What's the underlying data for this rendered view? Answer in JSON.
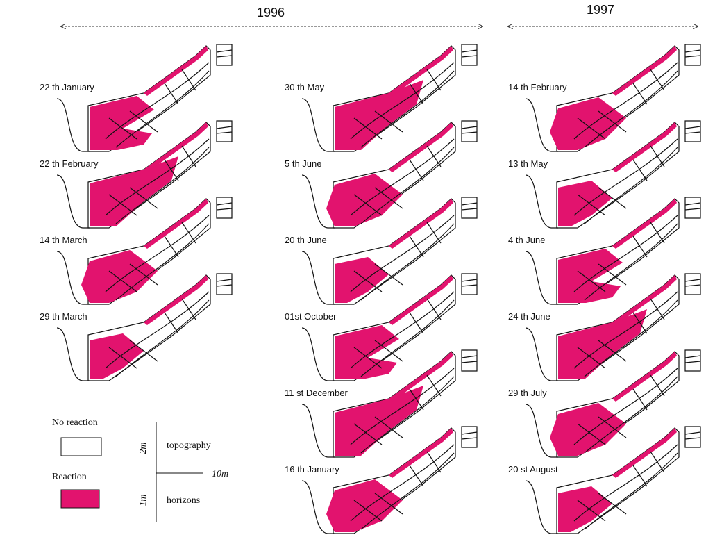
{
  "years": [
    "1996",
    "1997"
  ],
  "columns": [
    [
      "22 th January",
      "22 th February",
      "14 th March",
      "29 th March"
    ],
    [
      "30 th May",
      "5 th June",
      "20 th June",
      "01st October",
      "11 st December",
      "16 th January"
    ],
    [
      "14 th February",
      "13 th May",
      "4 th June",
      "24 th June",
      "29 th July",
      "20 st August"
    ]
  ],
  "legend": {
    "no_reaction": "No reaction",
    "reaction": "Reaction",
    "scale_vertical_top": "2m",
    "scale_vertical_bottom": "1m",
    "scale_horizontal": "10m",
    "top_label": "topography",
    "bottom_label": "horizons"
  }
}
